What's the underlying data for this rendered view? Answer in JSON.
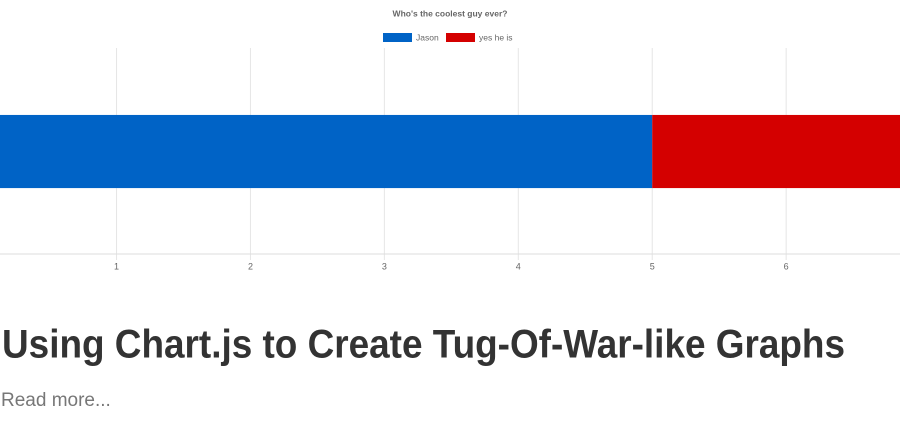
{
  "chart_data": {
    "type": "stacked-hbar",
    "title": "Who's the coolest guy ever?",
    "categories": [
      null
    ],
    "series": [
      {
        "name": "Jason",
        "color": "#0063c6",
        "values": [
          5
        ]
      },
      {
        "name": "yes he is",
        "color": "#d40000",
        "values": [
          2
        ]
      }
    ],
    "xlim": [
      0.13,
      6.85
    ],
    "xticks": [
      1,
      2,
      3,
      4,
      5,
      6
    ],
    "grid": true,
    "legend": "top"
  },
  "post": {
    "title": "Using Chart.js to Create Tug-Of-War-like Graphs",
    "link": "Read more..."
  }
}
